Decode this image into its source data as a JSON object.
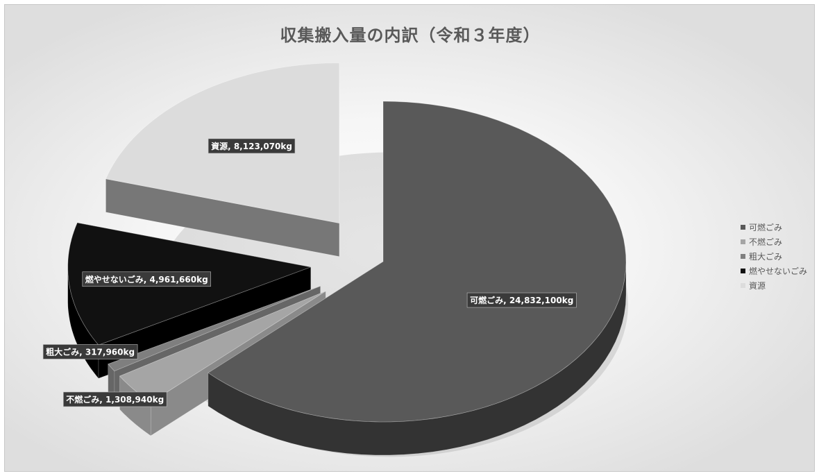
{
  "chart_data": {
    "type": "pie",
    "title": "収集搬入量の内訳（令和３年度）",
    "unit": "kg",
    "slices": [
      {
        "name": "可燃ごみ",
        "value": 24832100,
        "label": "可燃ごみ, 24,832,100kg",
        "color": "#595959",
        "side_color": "#333333",
        "exploded": false
      },
      {
        "name": "不燃ごみ",
        "value": 1308940,
        "label": "不燃ごみ, 1,308,940kg",
        "color": "#a5a5a5",
        "side_color": "#8a8a8a",
        "exploded": true
      },
      {
        "name": "粗大ごみ",
        "value": 317960,
        "label": "粗大ごみ, 317,960kg",
        "color": "#7f7f7f",
        "side_color": "#666666",
        "exploded": true
      },
      {
        "name": "燃やせないごみ",
        "value": 4961660,
        "label": "燃やせないごみ, 4,961,660kg",
        "color": "#111111",
        "side_color": "#000000",
        "exploded": true
      },
      {
        "name": "資源",
        "value": 8123070,
        "label": "資源, 8,123,070kg",
        "color": "#dcdcdc",
        "side_color": "#777777",
        "exploded": true
      }
    ],
    "legend_position": "right",
    "label_style": "dark-box"
  }
}
